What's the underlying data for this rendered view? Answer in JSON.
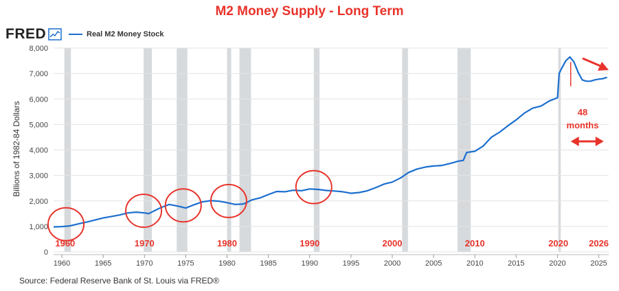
{
  "headline": "M2 Money Supply - Long Term",
  "logo": {
    "text": "FRED",
    "icon": "chart-line-icon"
  },
  "source": "Source: Federal Reserve Bank of St. Louis via FRED®",
  "colors": {
    "line": "#1a6ecf",
    "recession": "#d7dadd",
    "annotation": "#e8332b",
    "grid": "#e3e3e3"
  },
  "chart_data": {
    "type": "line",
    "ylabel": "Billions of 1982-84 Dollars",
    "xlim": [
      1959,
      2026.2
    ],
    "ylim": [
      0,
      8000
    ],
    "xticks": [
      1960,
      1965,
      1970,
      1975,
      1980,
      1985,
      1990,
      1995,
      2000,
      2005,
      2010,
      2015,
      2020,
      2025
    ],
    "yticks": [
      0,
      1000,
      2000,
      3000,
      4000,
      5000,
      6000,
      7000,
      8000
    ],
    "ytick_labels": [
      "0",
      "1,000",
      "2,000",
      "3,000",
      "4,000",
      "5,000",
      "6,000",
      "7,000",
      "8,000"
    ],
    "grid": true,
    "legend_position": "top-left",
    "recessions": [
      [
        1960.3,
        1961.1
      ],
      [
        1969.9,
        1970.9
      ],
      [
        1973.9,
        1975.2
      ],
      [
        1980.0,
        1980.5
      ],
      [
        1981.5,
        1982.9
      ],
      [
        1990.5,
        1991.2
      ],
      [
        2001.2,
        2001.9
      ],
      [
        2007.9,
        2009.5
      ],
      [
        2020.1,
        2020.4
      ]
    ],
    "series": [
      {
        "name": "Real M2 Money Stock",
        "x": [
          1959.0,
          1960.0,
          1961.0,
          1962.0,
          1963.0,
          1964.0,
          1965.0,
          1966.0,
          1967.0,
          1968.0,
          1969.0,
          1970.0,
          1970.5,
          1971.0,
          1972.0,
          1973.0,
          1974.0,
          1975.0,
          1976.0,
          1977.0,
          1978.0,
          1979.0,
          1980.0,
          1981.0,
          1982.0,
          1983.0,
          1984.0,
          1985.0,
          1986.0,
          1987.0,
          1988.0,
          1989.0,
          1990.0,
          1991.0,
          1992.0,
          1993.0,
          1994.0,
          1995.0,
          1996.0,
          1997.0,
          1998.0,
          1999.0,
          2000.0,
          2001.0,
          2002.0,
          2003.0,
          2004.0,
          2005.0,
          2006.0,
          2007.0,
          2008.0,
          2008.6,
          2009.0,
          2010.0,
          2011.0,
          2012.0,
          2013.0,
          2014.0,
          2015.0,
          2016.0,
          2017.0,
          2018.0,
          2019.0,
          2020.0,
          2020.2,
          2020.5,
          2021.0,
          2021.5,
          2022.0,
          2022.5,
          2023.0,
          2023.5,
          2024.0,
          2024.5,
          2025.0,
          2025.5,
          2026.0
        ],
        "y": [
          980,
          990,
          1020,
          1100,
          1170,
          1250,
          1330,
          1390,
          1450,
          1530,
          1560,
          1530,
          1500,
          1580,
          1740,
          1860,
          1800,
          1720,
          1850,
          1960,
          2010,
          1990,
          1930,
          1860,
          1880,
          2040,
          2120,
          2250,
          2370,
          2360,
          2420,
          2400,
          2470,
          2450,
          2410,
          2390,
          2360,
          2300,
          2330,
          2400,
          2520,
          2660,
          2740,
          2900,
          3120,
          3250,
          3330,
          3370,
          3390,
          3470,
          3560,
          3590,
          3900,
          3950,
          4150,
          4500,
          4700,
          4950,
          5180,
          5450,
          5640,
          5720,
          5920,
          6050,
          7000,
          7200,
          7500,
          7650,
          7450,
          7050,
          6750,
          6700,
          6700,
          6750,
          6780,
          6800,
          6850
        ]
      }
    ],
    "annotations": {
      "decade_labels": [
        {
          "text": "1960",
          "x": 1960.4
        },
        {
          "text": "1970",
          "x": 1970.0
        },
        {
          "text": "1980",
          "x": 1980.0
        },
        {
          "text": "1990",
          "x": 1990.0
        },
        {
          "text": "2000",
          "x": 2000.0
        },
        {
          "text": "2010",
          "x": 2010.0
        },
        {
          "text": "2020",
          "x": 2020.1
        },
        {
          "text": "2026",
          "x": 2025.0
        }
      ],
      "circled_years": [
        1960.5,
        1969.9,
        1974.7,
        1980.2,
        1990.5
      ],
      "months_label": [
        "48",
        "months"
      ]
    }
  }
}
